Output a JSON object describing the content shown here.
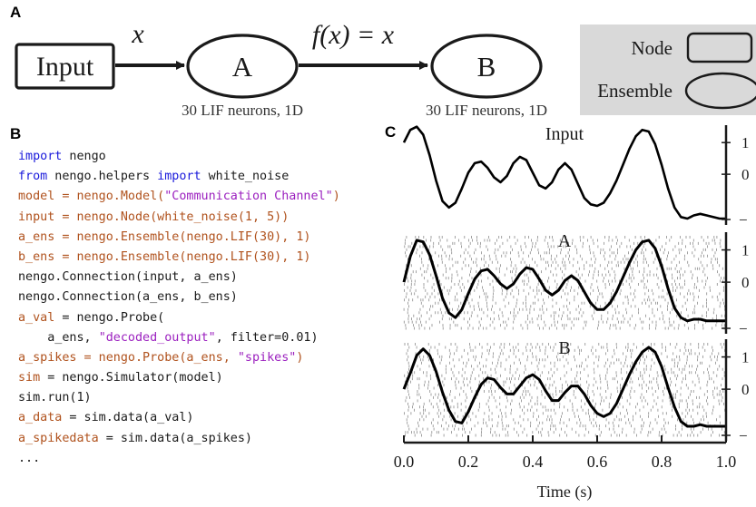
{
  "panel_labels": {
    "a": "A",
    "b": "B",
    "c": "C"
  },
  "diagram": {
    "input_node": "Input",
    "ens_a": "A",
    "ens_b": "B",
    "edge_input_a": "x",
    "edge_a_b": "f(x) = x",
    "ens_a_caption": "30 LIF neurons, 1D",
    "ens_b_caption": "30 LIF neurons, 1D",
    "legend": {
      "node": "Node",
      "ensemble": "Ensemble"
    }
  },
  "code": [
    [
      {
        "t": "import",
        "k": "keyword"
      },
      {
        "t": " nengo",
        "k": "plain"
      }
    ],
    [
      {
        "t": "from",
        "k": "keyword"
      },
      {
        "t": " nengo.helpers ",
        "k": "plain"
      },
      {
        "t": "import",
        "k": "keyword"
      },
      {
        "t": " white_noise",
        "k": "plain"
      }
    ],
    [
      {
        "t": "model",
        "k": "var"
      },
      {
        "t": " = nengo.Model(",
        "k": "var"
      },
      {
        "t": "\"Communication Channel\"",
        "k": "string"
      },
      {
        "t": ")",
        "k": "var"
      }
    ],
    [
      {
        "t": "input",
        "k": "var"
      },
      {
        "t": " = nengo.Node(white_noise(1, 5))",
        "k": "var"
      }
    ],
    [
      {
        "t": "a_ens",
        "k": "var"
      },
      {
        "t": " = nengo.Ensemble(nengo.LIF(30), 1)",
        "k": "var"
      }
    ],
    [
      {
        "t": "b_ens",
        "k": "var"
      },
      {
        "t": " = nengo.Ensemble(nengo.LIF(30), 1)",
        "k": "var"
      }
    ],
    [
      {
        "t": "nengo.Connection(input, a_ens)",
        "k": "plain"
      }
    ],
    [
      {
        "t": "nengo.Connection(a_ens, b_ens)",
        "k": "plain"
      }
    ],
    [
      {
        "t": "a_val",
        "k": "var"
      },
      {
        "t": " = nengo.Probe(",
        "k": "plain"
      }
    ],
    [
      {
        "t": "    a_ens, ",
        "k": "plain"
      },
      {
        "t": "\"decoded_output\"",
        "k": "string"
      },
      {
        "t": ", filter=0.01)",
        "k": "plain"
      }
    ],
    [
      {
        "t": "a_spikes",
        "k": "var"
      },
      {
        "t": " = nengo.Probe(a_ens, ",
        "k": "var"
      },
      {
        "t": "\"spikes\"",
        "k": "string"
      },
      {
        "t": ")",
        "k": "var"
      }
    ],
    [
      {
        "t": "sim",
        "k": "var"
      },
      {
        "t": " = nengo.Simulator(model)",
        "k": "plain"
      }
    ],
    [
      {
        "t": "sim.run(1)",
        "k": "plain"
      }
    ],
    [
      {
        "t": "a_data",
        "k": "var"
      },
      {
        "t": " = sim.data(a_val)",
        "k": "plain"
      }
    ],
    [
      {
        "t": "a_spikedata",
        "k": "var"
      },
      {
        "t": " = sim.data(a_spikes)",
        "k": "plain"
      }
    ],
    [
      {
        "t": "...",
        "k": "plain"
      }
    ]
  ],
  "colors": {
    "keyword": "#1a1adb",
    "variable": "#b0521d",
    "string": "#9b1fbf",
    "legend_bg": "#d9d9d9",
    "spikes": "#8c8c8c"
  },
  "chart_data": {
    "type": "line",
    "xlabel": "Time (s)",
    "xlim": [
      0,
      1
    ],
    "x_ticks": [
      "0.0",
      "0.2",
      "0.4",
      "0.6",
      "0.8",
      "1.0"
    ],
    "y_ticks": [
      "1",
      "0",
      "−"
    ],
    "panels": [
      {
        "name": "Input",
        "ylim": [
          -1.6,
          1.55
        ],
        "spike_raster": false,
        "x": [
          0,
          0.02,
          0.04,
          0.06,
          0.08,
          0.1,
          0.12,
          0.14,
          0.16,
          0.18,
          0.2,
          0.22,
          0.24,
          0.26,
          0.28,
          0.3,
          0.32,
          0.34,
          0.36,
          0.38,
          0.4,
          0.42,
          0.44,
          0.46,
          0.48,
          0.5,
          0.52,
          0.54,
          0.56,
          0.58,
          0.6,
          0.62,
          0.64,
          0.66,
          0.68,
          0.7,
          0.72,
          0.74,
          0.76,
          0.78,
          0.8,
          0.82,
          0.84,
          0.86,
          0.88,
          0.9,
          0.92,
          0.94,
          0.96,
          0.98,
          1.0
        ],
        "y": [
          1.0,
          1.4,
          1.5,
          1.25,
          0.6,
          -0.2,
          -0.85,
          -1.05,
          -0.9,
          -0.45,
          0.05,
          0.35,
          0.4,
          0.2,
          -0.1,
          -0.25,
          -0.05,
          0.35,
          0.55,
          0.45,
          0.05,
          -0.35,
          -0.45,
          -0.25,
          0.15,
          0.35,
          0.15,
          -0.3,
          -0.75,
          -0.95,
          -1.0,
          -0.9,
          -0.6,
          -0.2,
          0.3,
          0.8,
          1.2,
          1.4,
          1.35,
          0.95,
          0.3,
          -0.45,
          -1.05,
          -1.35,
          -1.4,
          -1.3,
          -1.25,
          -1.3,
          -1.35,
          -1.4,
          -1.4
        ]
      },
      {
        "name": "A",
        "ylim": [
          -1.6,
          1.55
        ],
        "spike_raster": true,
        "x": [
          0,
          0.02,
          0.04,
          0.06,
          0.08,
          0.1,
          0.12,
          0.14,
          0.16,
          0.18,
          0.2,
          0.22,
          0.24,
          0.26,
          0.28,
          0.3,
          0.32,
          0.34,
          0.36,
          0.38,
          0.4,
          0.42,
          0.44,
          0.46,
          0.48,
          0.5,
          0.52,
          0.54,
          0.56,
          0.58,
          0.6,
          0.62,
          0.64,
          0.66,
          0.68,
          0.7,
          0.72,
          0.74,
          0.76,
          0.78,
          0.8,
          0.82,
          0.84,
          0.86,
          0.88,
          0.9,
          0.92,
          0.94,
          0.96,
          0.98,
          1.0
        ],
        "y": [
          0.0,
          0.8,
          1.3,
          1.25,
          0.85,
          0.2,
          -0.5,
          -0.95,
          -1.1,
          -0.85,
          -0.35,
          0.1,
          0.35,
          0.4,
          0.2,
          -0.05,
          -0.2,
          -0.05,
          0.25,
          0.45,
          0.4,
          0.1,
          -0.25,
          -0.4,
          -0.25,
          0.05,
          0.2,
          0.05,
          -0.3,
          -0.65,
          -0.85,
          -0.85,
          -0.65,
          -0.3,
          0.15,
          0.6,
          1.0,
          1.25,
          1.3,
          1.05,
          0.5,
          -0.2,
          -0.8,
          -1.1,
          -1.2,
          -1.15,
          -1.15,
          -1.2,
          -1.2,
          -1.2,
          -1.2
        ]
      },
      {
        "name": "B",
        "ylim": [
          -1.6,
          1.55
        ],
        "spike_raster": true,
        "x": [
          0,
          0.02,
          0.04,
          0.06,
          0.08,
          0.1,
          0.12,
          0.14,
          0.16,
          0.18,
          0.2,
          0.22,
          0.24,
          0.26,
          0.28,
          0.3,
          0.32,
          0.34,
          0.36,
          0.38,
          0.4,
          0.42,
          0.44,
          0.46,
          0.48,
          0.5,
          0.52,
          0.54,
          0.56,
          0.58,
          0.6,
          0.62,
          0.64,
          0.66,
          0.68,
          0.7,
          0.72,
          0.74,
          0.76,
          0.78,
          0.8,
          0.82,
          0.84,
          0.86,
          0.88,
          0.9,
          0.92,
          0.94,
          0.96,
          0.98,
          1.0
        ],
        "y": [
          0.0,
          0.5,
          1.05,
          1.25,
          1.05,
          0.55,
          -0.1,
          -0.65,
          -1.0,
          -1.05,
          -0.7,
          -0.25,
          0.15,
          0.35,
          0.3,
          0.05,
          -0.15,
          -0.15,
          0.1,
          0.35,
          0.45,
          0.3,
          -0.05,
          -0.35,
          -0.35,
          -0.1,
          0.1,
          0.1,
          -0.15,
          -0.5,
          -0.75,
          -0.85,
          -0.75,
          -0.45,
          0.0,
          0.45,
          0.85,
          1.15,
          1.3,
          1.15,
          0.7,
          0.05,
          -0.55,
          -1.0,
          -1.15,
          -1.15,
          -1.1,
          -1.15,
          -1.15,
          -1.15,
          -1.15
        ]
      }
    ]
  }
}
